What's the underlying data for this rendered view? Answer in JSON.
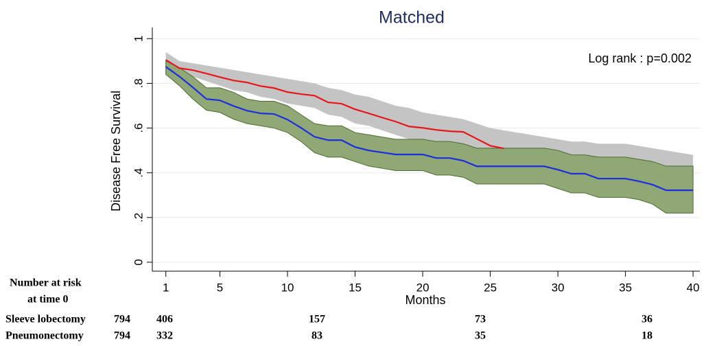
{
  "chart_data": {
    "type": "line",
    "title": "Matched",
    "annotation": "Log rank : p=0.002",
    "x_label": "Months",
    "y_label": "Disease Free Survival",
    "x": [
      1,
      2,
      3,
      4,
      5,
      6,
      7,
      8,
      9,
      10,
      11,
      12,
      13,
      14,
      15,
      16,
      17,
      18,
      19,
      20,
      21,
      22,
      23,
      24,
      25,
      26,
      27,
      28,
      29,
      30,
      31,
      32,
      33,
      34,
      35,
      36,
      37,
      38,
      39,
      40
    ],
    "series": [
      {
        "color": "#e8161a",
        "band_color": "#c4c4c4",
        "values": [
          0.905,
          0.868,
          0.859,
          0.844,
          0.828,
          0.813,
          0.804,
          0.788,
          0.779,
          0.761,
          0.752,
          0.745,
          0.715,
          0.709,
          0.684,
          0.666,
          0.647,
          0.629,
          0.607,
          0.601,
          0.592,
          0.586,
          0.583,
          0.552,
          0.521,
          0.509,
          null,
          null,
          null,
          null,
          null,
          null,
          null,
          null,
          null,
          null,
          null,
          null,
          null,
          null
        ],
        "ci_upper": [
          0.94,
          0.9,
          0.89,
          0.88,
          0.87,
          0.86,
          0.85,
          0.84,
          0.83,
          0.82,
          0.81,
          0.8,
          0.78,
          0.77,
          0.75,
          0.74,
          0.72,
          0.7,
          0.69,
          0.67,
          0.66,
          0.65,
          0.64,
          0.62,
          0.6,
          0.59,
          0.58,
          0.57,
          0.56,
          0.55,
          0.54,
          0.54,
          0.53,
          0.53,
          0.53,
          0.52,
          0.51,
          0.5,
          0.49,
          0.48
        ],
        "ci_lower": [
          0.87,
          0.84,
          0.83,
          0.81,
          0.79,
          0.77,
          0.76,
          0.74,
          0.73,
          0.71,
          0.7,
          0.69,
          0.66,
          0.65,
          0.62,
          0.61,
          0.59,
          0.57,
          0.55,
          0.54,
          0.53,
          0.52,
          0.51,
          0.48,
          0.45,
          0.43,
          0.42,
          0.41,
          0.4,
          0.39,
          0.38,
          0.37,
          0.36,
          0.35,
          0.34,
          0.33,
          0.32,
          0.3,
          0.29,
          0.28
        ]
      },
      {
        "color": "#1a2ee0",
        "band_color": "#8fa876",
        "values": [
          0.874,
          0.831,
          0.782,
          0.73,
          0.724,
          0.699,
          0.678,
          0.666,
          0.663,
          0.638,
          0.601,
          0.561,
          0.546,
          0.546,
          0.515,
          0.5,
          0.491,
          0.482,
          0.482,
          0.482,
          0.466,
          0.466,
          0.454,
          0.429,
          0.429,
          0.429,
          0.429,
          0.429,
          0.429,
          0.414,
          0.396,
          0.396,
          0.374,
          0.374,
          0.374,
          0.362,
          0.347,
          0.322,
          0.322,
          0.322
        ],
        "ci_upper": [
          0.9,
          0.87,
          0.83,
          0.78,
          0.78,
          0.76,
          0.73,
          0.72,
          0.72,
          0.7,
          0.66,
          0.62,
          0.61,
          0.61,
          0.58,
          0.57,
          0.56,
          0.55,
          0.55,
          0.55,
          0.54,
          0.54,
          0.53,
          0.51,
          0.51,
          0.51,
          0.51,
          0.51,
          0.51,
          0.5,
          0.48,
          0.48,
          0.47,
          0.47,
          0.47,
          0.46,
          0.45,
          0.43,
          0.43,
          0.43
        ],
        "ci_lower": [
          0.84,
          0.79,
          0.73,
          0.68,
          0.67,
          0.64,
          0.62,
          0.61,
          0.6,
          0.58,
          0.54,
          0.49,
          0.47,
          0.47,
          0.45,
          0.43,
          0.42,
          0.41,
          0.41,
          0.41,
          0.39,
          0.39,
          0.38,
          0.35,
          0.35,
          0.35,
          0.35,
          0.35,
          0.35,
          0.33,
          0.31,
          0.31,
          0.29,
          0.29,
          0.29,
          0.28,
          0.26,
          0.22,
          0.22,
          0.22
        ]
      }
    ],
    "xlim": [
      0,
      40.5
    ],
    "xticks": [
      1,
      5,
      10,
      15,
      20,
      25,
      30,
      35,
      40
    ],
    "ylim": [
      -0.04,
      1.05
    ],
    "yticks": [
      0,
      {
        "value": 0.2,
        "label": ".2"
      },
      {
        "value": 0.4,
        "label": ".4"
      },
      {
        "value": 0.6,
        "label": ".6"
      },
      {
        "value": 0.8,
        "label": ".8"
      },
      1
    ],
    "grid": true,
    "risk_table": {
      "title": [
        "Number at risk",
        "at time 0"
      ],
      "rows": [
        {
          "name": "Sleeve lobectomy",
          "total": 794,
          "counts": [
            406,
            157,
            73,
            36
          ]
        },
        {
          "name": "Pneumonectomy",
          "total": 794,
          "counts": [
            332,
            83,
            35,
            18
          ]
        }
      ]
    }
  }
}
